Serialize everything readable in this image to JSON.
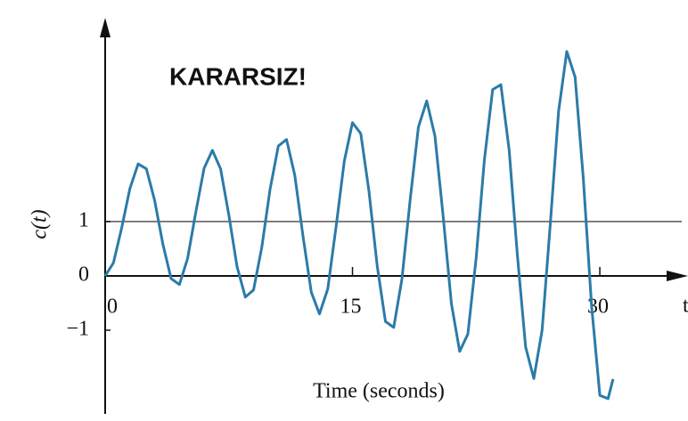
{
  "chart_data": {
    "type": "line",
    "annotation": "KARARSIZ!",
    "xlabel": "Time (seconds)",
    "ylabel": "c(t)",
    "x_axis_end_label": "t",
    "color": "#2b7ba8",
    "reference_line": 1,
    "xlim": [
      0,
      35.24
    ],
    "ylim": [
      -2.54,
      4.75
    ],
    "xticks": [
      0,
      15,
      30
    ],
    "yticks": [
      {
        "value": -1,
        "label": "−1"
      },
      0,
      1
    ],
    "x": [
      0,
      0.5,
      1,
      1.5,
      2,
      2.5,
      3,
      3.5,
      4,
      4.5,
      5,
      5.5,
      6,
      6.5,
      7,
      7.5,
      8,
      8.5,
      9,
      9.5,
      10,
      10.5,
      11,
      11.5,
      12,
      12.5,
      13,
      13.5,
      14,
      14.5,
      15,
      15.5,
      16,
      16.5,
      17,
      17.5,
      18,
      18.5,
      19,
      19.5,
      20,
      20.5,
      21,
      21.5,
      22,
      22.5,
      23,
      23.5,
      24,
      24.5,
      25,
      25.5,
      26,
      26.5,
      27,
      27.5,
      28,
      28.5,
      29,
      29.5,
      30,
      30.5,
      30.8
    ],
    "values": [
      0,
      0.24,
      0.88,
      1.61,
      2.06,
      1.97,
      1.39,
      0.58,
      -0.05,
      -0.16,
      0.32,
      1.18,
      1.98,
      2.31,
      1.97,
      1.12,
      0.17,
      -0.39,
      -0.26,
      0.53,
      1.59,
      2.39,
      2.51,
      1.85,
      0.73,
      -0.3,
      -0.7,
      -0.24,
      0.89,
      2.11,
      2.82,
      2.62,
      1.56,
      0.18,
      -0.84,
      -0.95,
      -0.06,
      1.41,
      2.74,
      3.22,
      2.58,
      1.09,
      -0.51,
      -1.39,
      -1.07,
      0.33,
      2.13,
      3.43,
      3.52,
      2.32,
      0.39,
      -1.31,
      -1.89,
      -1.0,
      0.96,
      3.03,
      4.13,
      3.66,
      1.8,
      -0.55,
      -2.2,
      -2.26,
      -1.9
    ]
  }
}
